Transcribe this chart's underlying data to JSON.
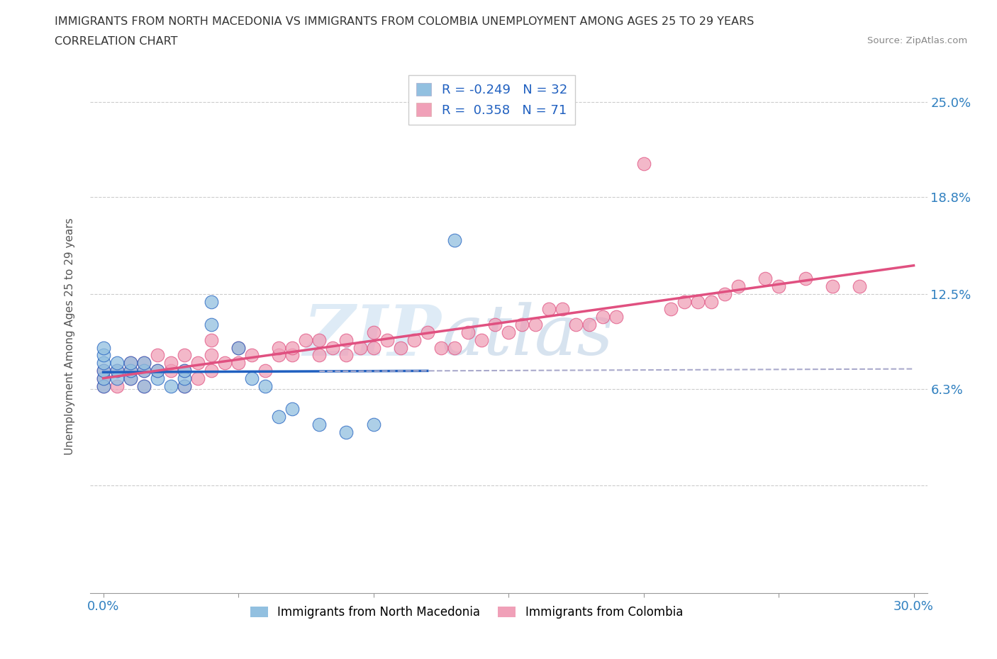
{
  "title": "IMMIGRANTS FROM NORTH MACEDONIA VS IMMIGRANTS FROM COLOMBIA UNEMPLOYMENT AMONG AGES 25 TO 29 YEARS",
  "subtitle": "CORRELATION CHART",
  "source": "Source: ZipAtlas.com",
  "ylabel": "Unemployment Among Ages 25 to 29 years",
  "xlim": [
    -0.005,
    0.305
  ],
  "ylim": [
    -0.07,
    0.265
  ],
  "xticks": [
    0.0,
    0.05,
    0.1,
    0.15,
    0.2,
    0.25,
    0.3
  ],
  "xticklabels": [
    "0.0%",
    "",
    "",
    "",
    "",
    "",
    "30.0%"
  ],
  "ytick_positions": [
    0.0,
    0.063,
    0.125,
    0.188,
    0.25
  ],
  "ytick_labels": [
    "",
    "6.3%",
    "12.5%",
    "18.8%",
    "25.0%"
  ],
  "color_blue": "#92c0e0",
  "color_pink": "#f0a0b8",
  "color_blue_line": "#2060c0",
  "color_pink_line": "#e05080",
  "R_blue": -0.249,
  "N_blue": 32,
  "R_pink": 0.358,
  "N_pink": 71,
  "watermark_zip": "ZIP",
  "watermark_atlas": "atlas",
  "legend_label_blue": "Immigrants from North Macedonia",
  "legend_label_pink": "Immigrants from Colombia",
  "blue_scatter_x": [
    0.0,
    0.0,
    0.0,
    0.0,
    0.0,
    0.0,
    0.005,
    0.005,
    0.005,
    0.01,
    0.01,
    0.01,
    0.015,
    0.015,
    0.015,
    0.02,
    0.02,
    0.025,
    0.03,
    0.03,
    0.03,
    0.04,
    0.04,
    0.05,
    0.055,
    0.06,
    0.065,
    0.07,
    0.08,
    0.09,
    0.1,
    0.13
  ],
  "blue_scatter_y": [
    0.065,
    0.07,
    0.075,
    0.08,
    0.085,
    0.09,
    0.07,
    0.075,
    0.08,
    0.07,
    0.075,
    0.08,
    0.065,
    0.075,
    0.08,
    0.07,
    0.075,
    0.065,
    0.065,
    0.07,
    0.075,
    0.105,
    0.12,
    0.09,
    0.07,
    0.065,
    0.045,
    0.05,
    0.04,
    0.035,
    0.04,
    0.16
  ],
  "pink_scatter_x": [
    0.0,
    0.0,
    0.0,
    0.005,
    0.005,
    0.01,
    0.01,
    0.01,
    0.015,
    0.015,
    0.015,
    0.02,
    0.02,
    0.025,
    0.025,
    0.03,
    0.03,
    0.03,
    0.035,
    0.035,
    0.04,
    0.04,
    0.04,
    0.045,
    0.05,
    0.05,
    0.055,
    0.06,
    0.065,
    0.065,
    0.07,
    0.07,
    0.075,
    0.08,
    0.08,
    0.085,
    0.09,
    0.09,
    0.095,
    0.1,
    0.1,
    0.105,
    0.11,
    0.115,
    0.12,
    0.125,
    0.13,
    0.135,
    0.14,
    0.145,
    0.15,
    0.155,
    0.16,
    0.165,
    0.17,
    0.175,
    0.18,
    0.185,
    0.19,
    0.2,
    0.21,
    0.215,
    0.22,
    0.225,
    0.23,
    0.235,
    0.245,
    0.25,
    0.26,
    0.27,
    0.28
  ],
  "pink_scatter_y": [
    0.065,
    0.07,
    0.075,
    0.065,
    0.075,
    0.07,
    0.075,
    0.08,
    0.065,
    0.075,
    0.08,
    0.075,
    0.085,
    0.075,
    0.08,
    0.065,
    0.075,
    0.085,
    0.07,
    0.08,
    0.075,
    0.085,
    0.095,
    0.08,
    0.08,
    0.09,
    0.085,
    0.075,
    0.085,
    0.09,
    0.085,
    0.09,
    0.095,
    0.085,
    0.095,
    0.09,
    0.085,
    0.095,
    0.09,
    0.09,
    0.1,
    0.095,
    0.09,
    0.095,
    0.1,
    0.09,
    0.09,
    0.1,
    0.095,
    0.105,
    0.1,
    0.105,
    0.105,
    0.115,
    0.115,
    0.105,
    0.105,
    0.11,
    0.11,
    0.21,
    0.115,
    0.12,
    0.12,
    0.12,
    0.125,
    0.13,
    0.135,
    0.13,
    0.135,
    0.13,
    0.13
  ]
}
